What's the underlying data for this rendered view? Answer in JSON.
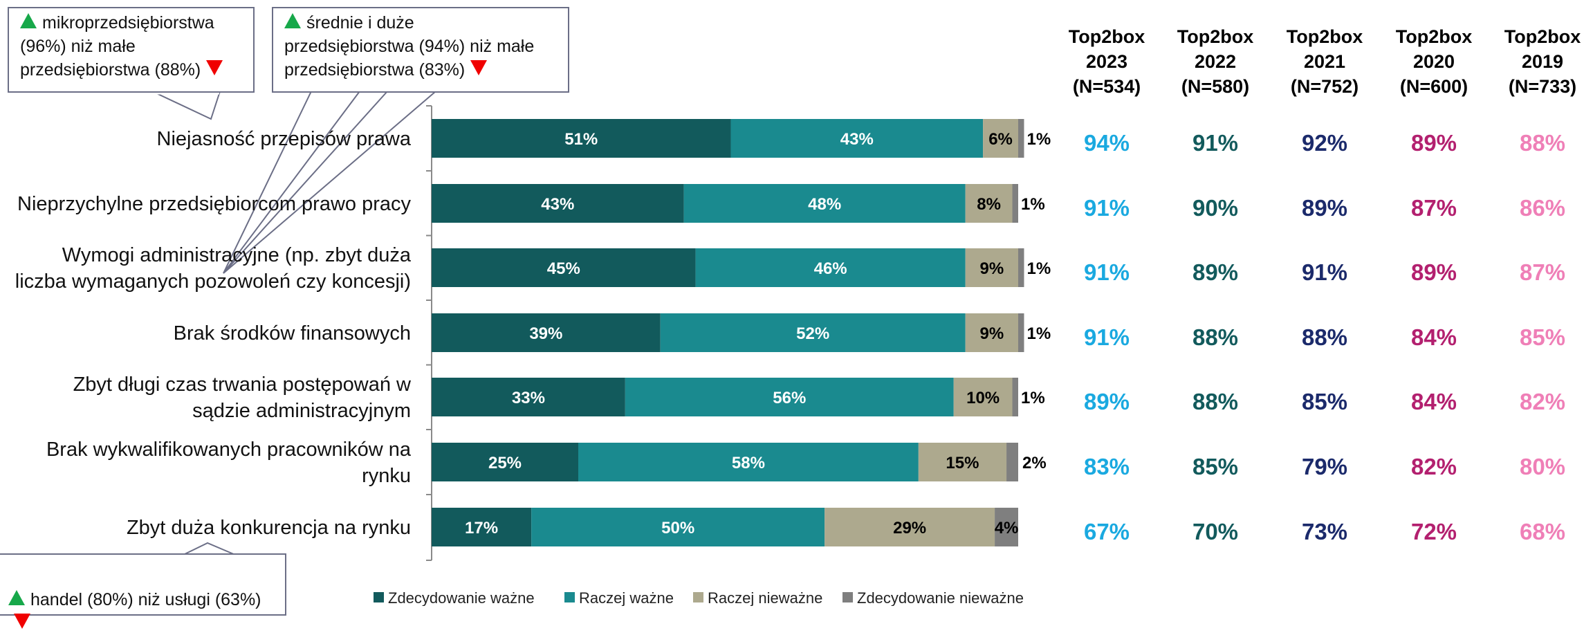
{
  "chart_data": {
    "type": "bar",
    "orientation": "horizontal",
    "stacked": true,
    "categories": [
      [
        "Niejasność przepisów prawa"
      ],
      [
        "Nieprzychylne przedsiębiorcom prawo pracy"
      ],
      [
        "Wymogi administracyjne (np. zbyt duża",
        "liczba wymaganych pozowoleń czy koncesji)"
      ],
      [
        "Brak środków finansowych"
      ],
      [
        "Zbyt długi czas trwania postępowań w",
        "sądzie administracyjnym"
      ],
      [
        "Brak wykwalifikowanych pracowników na",
        "rynku"
      ],
      [
        "Zbyt duża konkurencja na rynku"
      ]
    ],
    "series": [
      {
        "name": "Zdecydowanie ważne",
        "color": "#125a5c",
        "label_color": "#ffffff",
        "values": [
          51,
          43,
          45,
          39,
          33,
          25,
          17
        ]
      },
      {
        "name": "Raczej ważne",
        "color": "#1a8a8f",
        "label_color": "#ffffff",
        "values": [
          43,
          48,
          46,
          52,
          56,
          58,
          50
        ]
      },
      {
        "name": "Raczej nieważne",
        "color": "#ada98e",
        "label_color": "#000000",
        "values": [
          6,
          8,
          9,
          9,
          10,
          15,
          29
        ]
      },
      {
        "name": "Zdecydowanie nieważne",
        "color": "#7f7f7f",
        "label_color": "#000000",
        "values": [
          1,
          1,
          1,
          1,
          1,
          2,
          4
        ]
      }
    ],
    "value_suffix": "%",
    "xlim": [
      0,
      100
    ],
    "legend": "bottom",
    "grid": false,
    "top2box": {
      "columns": [
        {
          "title": "Top2box",
          "year": "2023",
          "n": "(N=534)",
          "color": "#1aa9e0",
          "values": [
            "94%",
            "91%",
            "91%",
            "91%",
            "89%",
            "83%",
            "67%"
          ]
        },
        {
          "title": "Top2box",
          "year": "2022",
          "n": "(N=580)",
          "color": "#125a5c",
          "values": [
            "91%",
            "90%",
            "89%",
            "88%",
            "88%",
            "85%",
            "70%"
          ]
        },
        {
          "title": "Top2box",
          "year": "2021",
          "n": "(N=752)",
          "color": "#1b2a6b",
          "values": [
            "92%",
            "89%",
            "91%",
            "88%",
            "85%",
            "79%",
            "73%"
          ]
        },
        {
          "title": "Top2box",
          "year": "2020",
          "n": "(N=600)",
          "color": "#b3206f",
          "values": [
            "89%",
            "87%",
            "89%",
            "84%",
            "84%",
            "82%",
            "72%"
          ]
        },
        {
          "title": "Top2box",
          "year": "2019",
          "n": "(N=733)",
          "color": "#ef7fb7",
          "values": [
            "88%",
            "86%",
            "87%",
            "85%",
            "82%",
            "80%",
            "68%"
          ]
        }
      ]
    }
  },
  "callouts": {
    "micro": {
      "line1": "mikroprzedsiębiorstwa",
      "line2": "(96%) niż małe",
      "line3": "przedsiębiorstwa (88%)",
      "up_icon": "triangle-up-green-icon",
      "down_icon": "triangle-down-red-icon"
    },
    "medium": {
      "line1": "średnie i duże",
      "line2": "przedsiębiorstwa (94%) niż małe",
      "line3": "przedsiębiorstwa (83%)",
      "up_icon": "triangle-up-green-icon",
      "down_icon": "triangle-down-red-icon"
    },
    "trade": {
      "line1": "handel (80%) niż usługi (63%)",
      "up_icon": "triangle-up-green-icon",
      "down_icon": "triangle-down-red-icon"
    }
  }
}
